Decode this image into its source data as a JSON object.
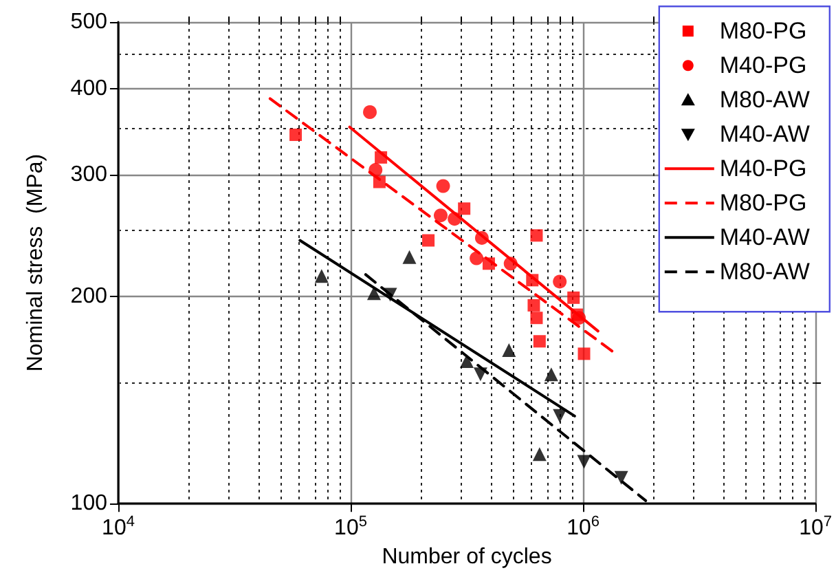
{
  "chart_data": {
    "type": "scatter",
    "xlabel": "Number of cycles",
    "ylabel": "Nominal stress  (MPa)",
    "log": "xy",
    "grid": true,
    "legend": "top right",
    "xlim": [
      10000,
      10000000
    ],
    "ylim": [
      100,
      500
    ],
    "xticks": [
      {
        "value": 10000,
        "label": "10$^{4}$"
      },
      {
        "value": 20000,
        "label": null
      },
      {
        "value": 30000,
        "label": null
      },
      {
        "value": 40000,
        "label": null
      },
      {
        "value": 50000,
        "label": null
      },
      {
        "value": 60000,
        "label": null
      },
      {
        "value": 70000,
        "label": null
      },
      {
        "value": 80000,
        "label": null
      },
      {
        "value": 90000,
        "label": null
      },
      {
        "value": 100000,
        "label": "10$^{5}$"
      },
      {
        "value": 200000,
        "label": null
      },
      {
        "value": 300000,
        "label": null
      },
      {
        "value": 400000,
        "label": null
      },
      {
        "value": 500000,
        "label": null
      },
      {
        "value": 600000,
        "label": null
      },
      {
        "value": 700000,
        "label": null
      },
      {
        "value": 800000,
        "label": null
      },
      {
        "value": 900000,
        "label": null
      },
      {
        "value": 1000000,
        "label": "10$^{6}$"
      },
      {
        "value": 2000000,
        "label": null
      },
      {
        "value": 3000000,
        "label": null
      },
      {
        "value": 4000000,
        "label": null
      },
      {
        "value": 5000000,
        "label": null
      },
      {
        "value": 6000000,
        "label": null
      },
      {
        "value": 7000000,
        "label": null
      },
      {
        "value": 8000000,
        "label": null
      },
      {
        "value": 9000000,
        "label": null
      },
      {
        "value": 10000000,
        "label": "10$^{7}$"
      }
    ],
    "yticks": [
      100,
      {
        "value": 150,
        "label": null
      },
      200,
      {
        "value": 250,
        "label": null
      },
      300,
      {
        "value": 350,
        "label": null
      },
      400,
      {
        "value": 450,
        "label": null
      },
      500
    ],
    "series": [
      {
        "name": "M80-PG",
        "marker": "square",
        "color": "#ff0000",
        "x": [
          58000,
          135000,
          133000,
          308000,
          216000,
          393000,
          631000,
          605000,
          614000,
          631000,
          650000,
          910000,
          940000,
          1010000
        ],
        "values": [
          343,
          318,
          293,
          268,
          241,
          223,
          245,
          211,
          194,
          186,
          172,
          199,
          188,
          165
        ]
      },
      {
        "name": "M40-PG",
        "marker": "circle",
        "color": "#ff0000",
        "x": [
          121000,
          128000,
          250000,
          244000,
          280000,
          367000,
          348000,
          488000,
          794000,
          960000
        ],
        "values": [
          370,
          305,
          289,
          262,
          259,
          243,
          227,
          223,
          210,
          186
        ]
      },
      {
        "name": "M80-AW",
        "marker": "triangle",
        "color": "#000000",
        "x": [
          75000,
          126000,
          179000,
          316000,
          480000,
          730000,
          650000
        ],
        "values": [
          214,
          202,
          228,
          161,
          167,
          154,
          118
        ]
      },
      {
        "name": "M40-AW",
        "marker": "triangle-down",
        "color": "#000000",
        "x": [
          148000,
          362000,
          794000,
          1010000,
          1460000
        ],
        "values": [
          201,
          154,
          134,
          115,
          109
        ]
      },
      {
        "name": "M40-PG",
        "type": "line",
        "line_style": "solid",
        "marker": "none",
        "color": "#ff0000",
        "x": [
          99000,
          1160000
        ],
        "values": [
          352,
          178
        ]
      },
      {
        "name": "M80-PG",
        "type": "line",
        "line_style": "dashed",
        "marker": "none",
        "color": "#ff0000",
        "x": [
          45000,
          1350000
        ],
        "values": [
          387,
          166
        ]
      },
      {
        "name": "M40-AW",
        "type": "line",
        "line_style": "solid",
        "marker": "none",
        "color": "#000000",
        "x": [
          60500,
          920000
        ],
        "values": [
          241,
          134
        ]
      },
      {
        "name": "M80-AW",
        "type": "line",
        "line_style": "dashed",
        "marker": "none",
        "color": "#000000",
        "x": [
          116000,
          1860000
        ],
        "values": [
          215,
          101
        ]
      }
    ]
  }
}
